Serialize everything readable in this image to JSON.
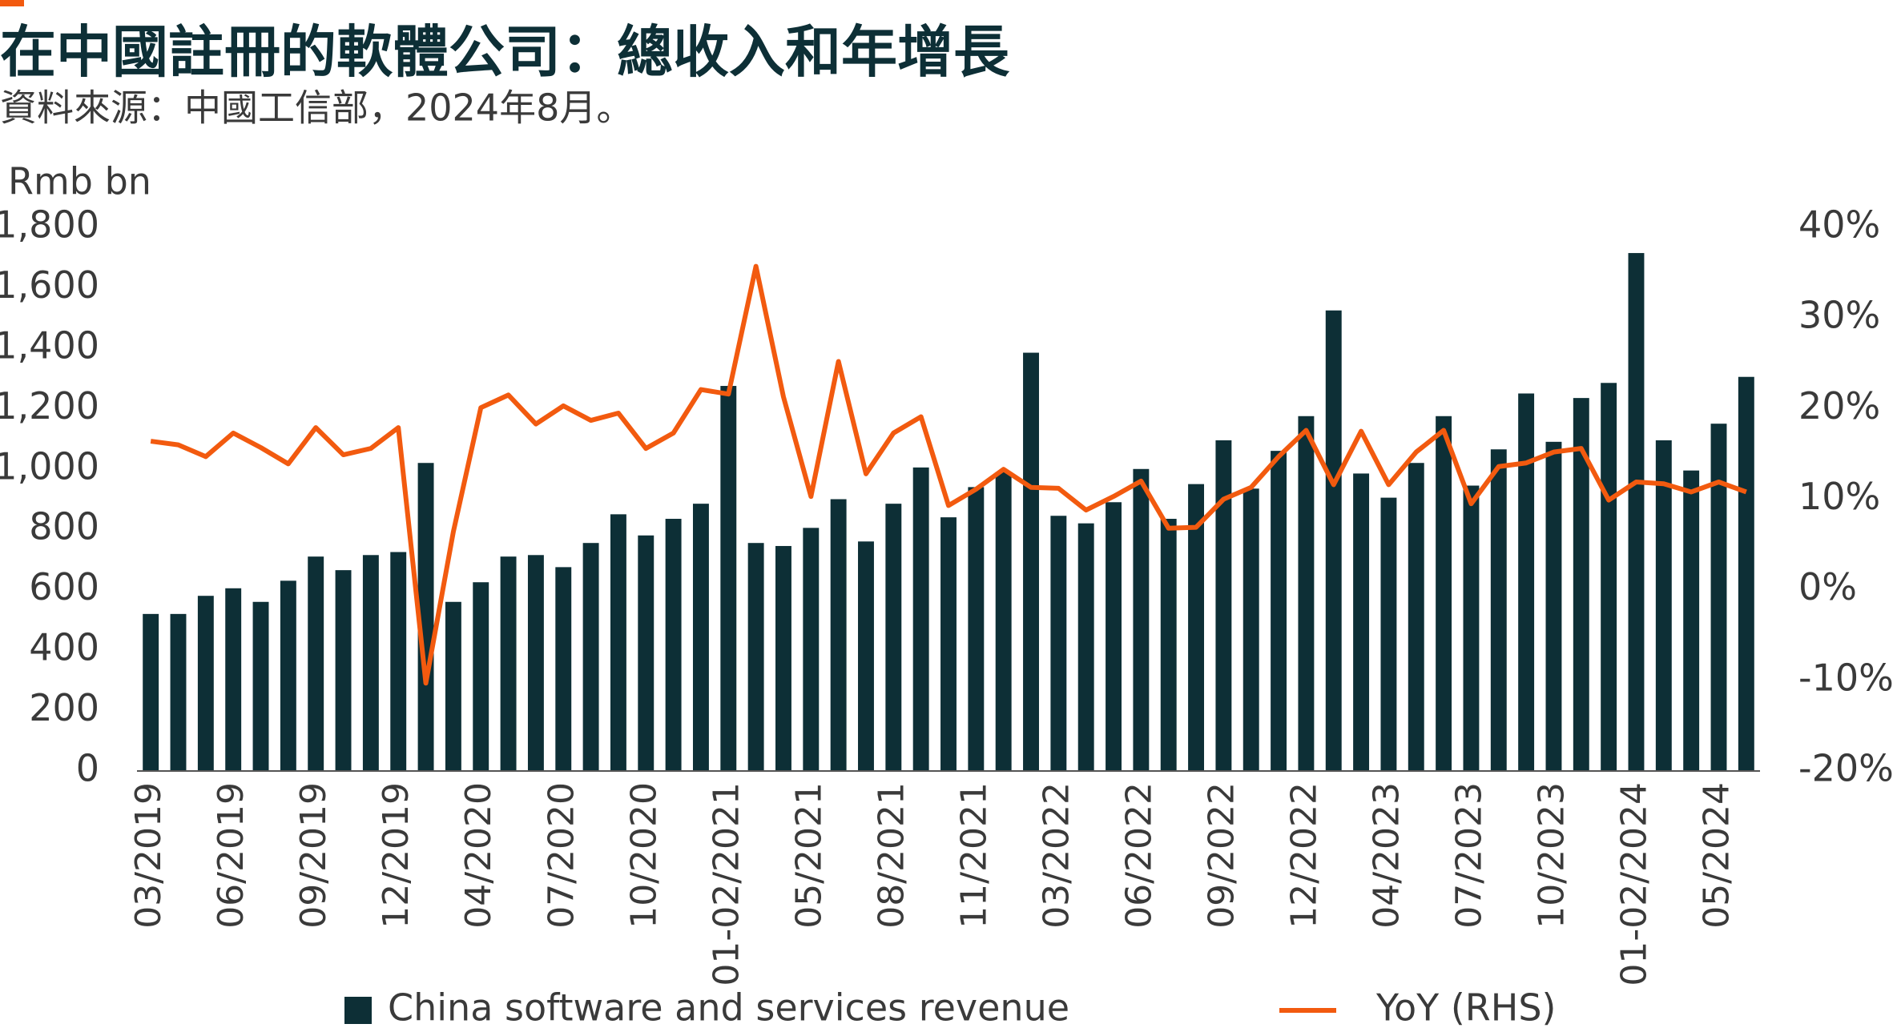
{
  "chart_data": {
    "type": "bar_line",
    "title": "在中國註冊的軟體公司：總收入和年增長",
    "subtitle": "資料來源：中國工信部，2024年8月。",
    "y_label": "Rmb bn",
    "categories": [
      "03/2019",
      null,
      null,
      "06/2019",
      null,
      null,
      "09/2019",
      null,
      null,
      "12/2019",
      null,
      null,
      "04/2020",
      null,
      null,
      "07/2020",
      null,
      null,
      "10/2020",
      null,
      null,
      "01-02/2021",
      null,
      null,
      "05/2021",
      null,
      null,
      "08/2021",
      null,
      null,
      "11/2021",
      null,
      null,
      "03/2022",
      null,
      null,
      "06/2022",
      null,
      null,
      "09/2022",
      null,
      null,
      "12/2022",
      null,
      null,
      "04/2023",
      null,
      null,
      "07/2023",
      null,
      null,
      "10/2023",
      null,
      null,
      "01-02/2024",
      null,
      null,
      "05/2024",
      null
    ],
    "series": [
      {
        "name": "China software and services revenue",
        "type": "bar",
        "color": "#0d2f36",
        "values": [
          520,
          520,
          580,
          605,
          560,
          630,
          710,
          665,
          715,
          725,
          1020,
          560,
          625,
          710,
          715,
          675,
          755,
          850,
          780,
          835,
          885,
          1275,
          755,
          745,
          805,
          900,
          760,
          885,
          1005,
          840,
          940,
          990,
          1385,
          845,
          820,
          890,
          1000,
          835,
          950,
          1095,
          935,
          1060,
          1175,
          1525,
          985,
          905,
          1020,
          1175,
          945,
          1065,
          1250,
          1090,
          1235,
          1285,
          1715,
          1095,
          995,
          1150,
          1305
        ]
      },
      {
        "name": "YoY (RHS)",
        "type": "line",
        "axis": "y2",
        "color": "#f25a0f",
        "values": [
          16.4,
          16.0,
          14.7,
          17.3,
          15.7,
          13.9,
          17.9,
          14.9,
          15.6,
          17.9,
          -10.3,
          6.4,
          20.1,
          21.5,
          18.3,
          20.3,
          18.7,
          19.5,
          15.6,
          17.3,
          22.1,
          21.6,
          35.7,
          21.3,
          10.3,
          25.2,
          12.8,
          17.3,
          19.1,
          9.3,
          11.1,
          13.3,
          11.3,
          11.2,
          8.8,
          10.3,
          12.0,
          6.8,
          6.9,
          10.0,
          11.3,
          14.7,
          17.6,
          11.6,
          17.5,
          11.6,
          15.2,
          17.6,
          9.5,
          13.6,
          14.0,
          15.2,
          15.6,
          9.9,
          11.9,
          11.7,
          10.8,
          11.9,
          10.8
        ]
      }
    ],
    "ylim": [
      0,
      1800
    ],
    "yticks": [
      0,
      200,
      400,
      600,
      800,
      {
        "value": 1000,
        "label": "1,000"
      },
      {
        "value": 1200,
        "label": "1,200"
      },
      {
        "value": 1400,
        "label": "1,400"
      },
      {
        "value": 1600,
        "label": "1,600"
      },
      {
        "value": 1800,
        "label": "1,800"
      }
    ],
    "y2lim": [
      -20,
      40
    ],
    "y2ticks": [
      {
        "value": -20,
        "label": "-20%"
      },
      {
        "value": -10,
        "label": "-10%"
      },
      {
        "value": 0,
        "label": "0%"
      },
      {
        "value": 10,
        "label": "10%"
      },
      {
        "value": 20,
        "label": "20%"
      },
      {
        "value": 30,
        "label": "30%"
      },
      {
        "value": 40,
        "label": "40%"
      }
    ],
    "legend": "bottom"
  }
}
